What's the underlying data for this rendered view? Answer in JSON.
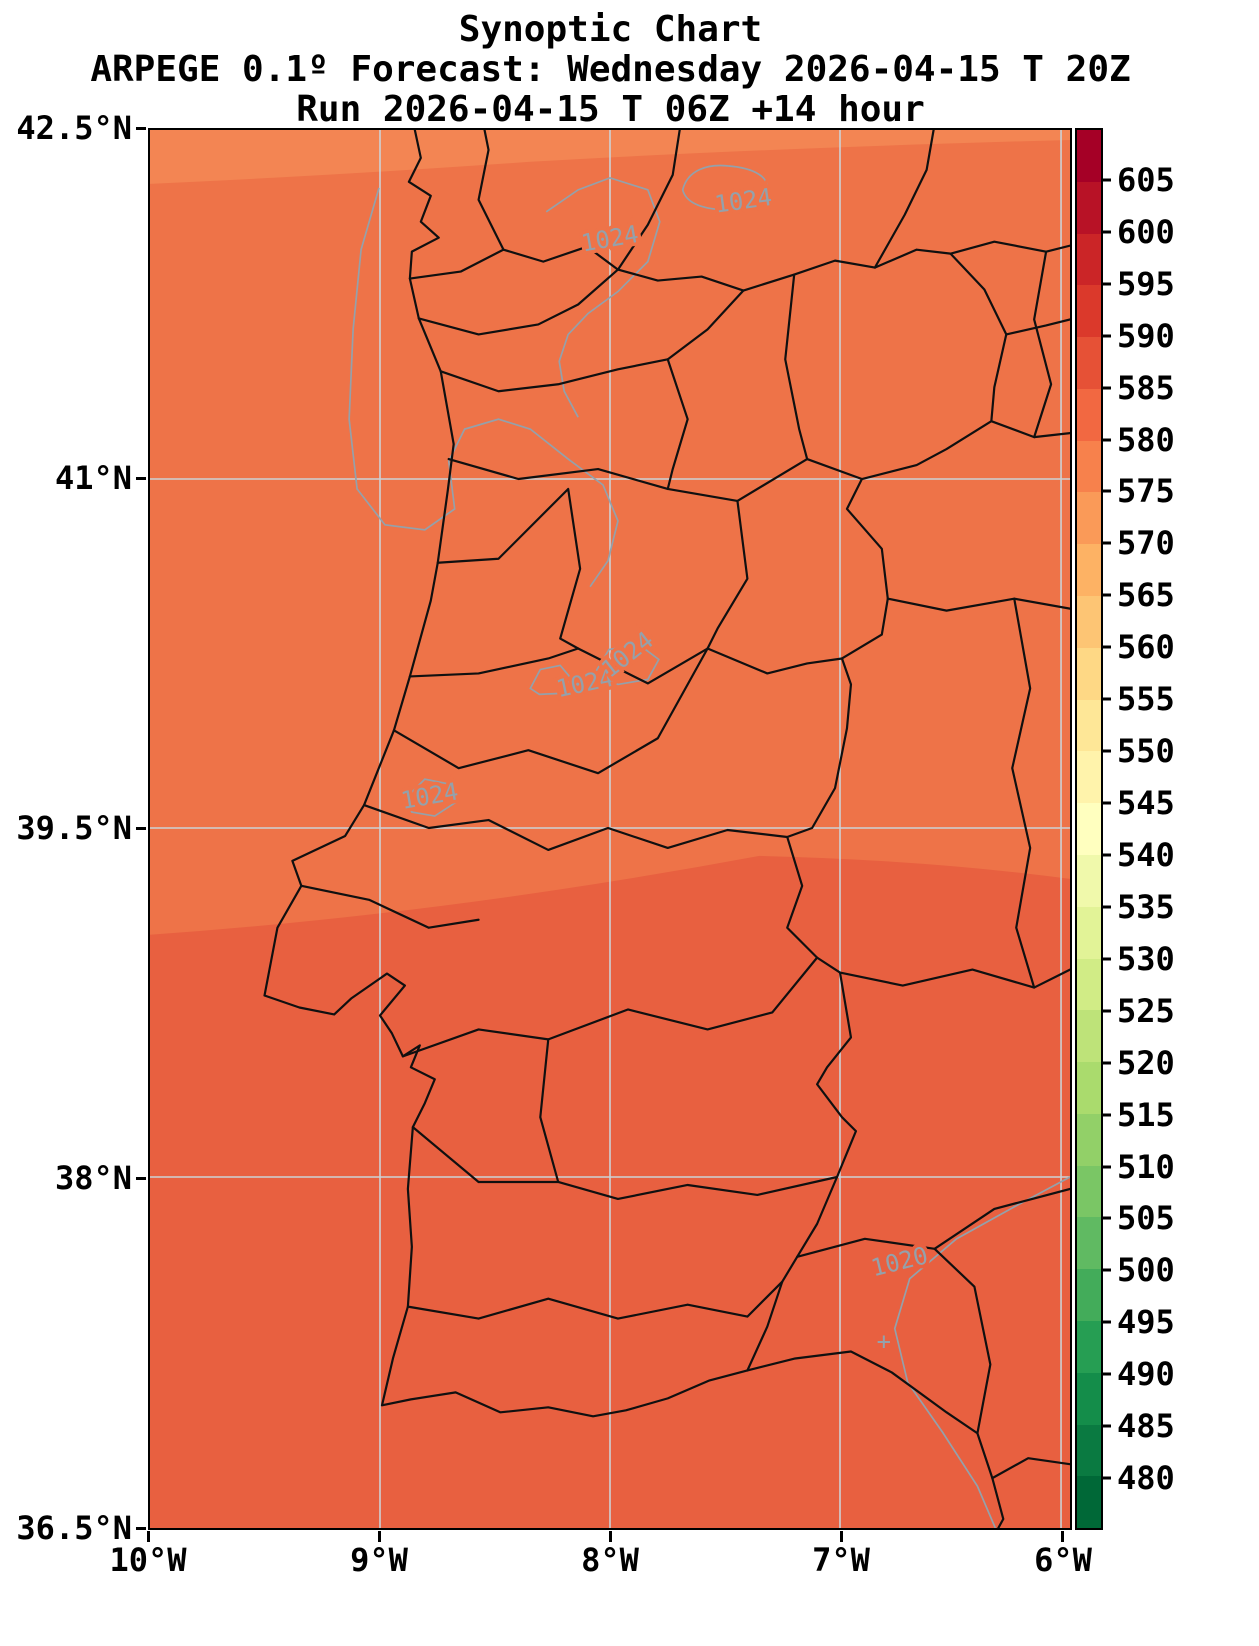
{
  "title": {
    "line1": "Synoptic Chart",
    "line2": "ARPEGE 0.1º Forecast: Wednesday 2026-04-15 T 20Z",
    "line3": "Run 2026-04-15 T 06Z +14 hour"
  },
  "axis": {
    "lat_labels": [
      "42.5°N",
      "41°N",
      "39.5°N",
      "38°N",
      "36.5°N"
    ],
    "lon_labels": [
      "10°W",
      "9°W",
      "8°W",
      "7°W",
      "6°W"
    ]
  },
  "colorbar": {
    "tick_labels": [
      "605",
      "600",
      "595",
      "590",
      "585",
      "580",
      "575",
      "570",
      "565",
      "560",
      "555",
      "550",
      "545",
      "540",
      "535",
      "530",
      "525",
      "520",
      "515",
      "510",
      "505",
      "500",
      "495",
      "490",
      "485",
      "480"
    ],
    "segment_colors": [
      "#a50026",
      "#b81226",
      "#cb2527",
      "#db392b",
      "#e65136",
      "#f26841",
      "#f7814c",
      "#fa9a58",
      "#fdb264",
      "#fdc574",
      "#fed885",
      "#fee797",
      "#fff3ab",
      "#ffffbf",
      "#f0f9ab",
      "#e2f397",
      "#d1ec86",
      "#bee379",
      "#aadb6d",
      "#92d068",
      "#7ac665",
      "#60ba62",
      "#43ac5a",
      "#269e53",
      "#148d4a",
      "#0a7a41",
      "#006837"
    ]
  },
  "map": {
    "colors": {
      "fill_main": "#ee7348",
      "fill_north": "#f38553",
      "fill_south": "#e86040",
      "boundary_color": "#101010",
      "contour_color": "#94a1ab",
      "grid_color": "#ccd2d6"
    },
    "labels": [
      {
        "text": "1024"
      },
      {
        "text": "1024"
      },
      {
        "text": "1024"
      },
      {
        "text": "1024"
      },
      {
        "text": "1024"
      },
      {
        "text": "1020"
      },
      {
        "text": "+"
      }
    ]
  },
  "chart_data": {
    "type": "heatmap",
    "title": "Synoptic Chart",
    "subtitle": "ARPEGE 0.1º Forecast: Wednesday 2026-04-15 T 20Z",
    "run_line": "Run 2026-04-15 T 06Z +14 hour",
    "region": "Portugal and western Spain",
    "x_axis": {
      "ticks": [
        "10°W",
        "9°W",
        "8°W",
        "7°W",
        "6°W"
      ],
      "range": [
        "10°W",
        "6°W"
      ]
    },
    "y_axis": {
      "ticks": [
        "42.5°N",
        "41°N",
        "39.5°N",
        "38°N",
        "36.5°N"
      ],
      "range": [
        "36.5°N",
        "42.5°N"
      ]
    },
    "colorbar_scale": {
      "tick_min": 480,
      "tick_max": 605,
      "step": 5,
      "style": "discrete red-yellow-green reversed"
    },
    "isobar_labels": [
      1024,
      1024,
      1024,
      1024,
      1024,
      1020
    ],
    "grid": true
  }
}
